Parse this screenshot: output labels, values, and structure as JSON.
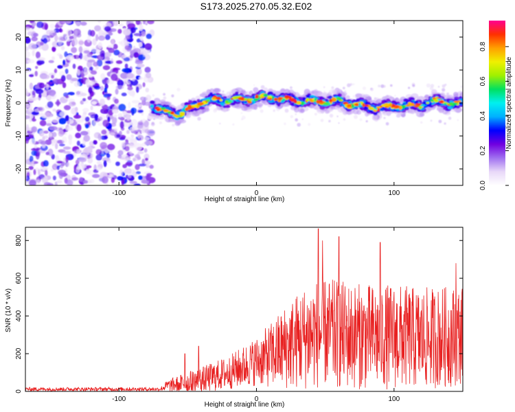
{
  "title": "S173.2025.270.05.32.E02",
  "chart_data": [
    {
      "type": "heatmap",
      "name": "spectrogram",
      "xlabel": "Height of straight line (km)",
      "ylabel": "Frequency (Hz)",
      "xlim": [
        -168,
        150
      ],
      "ylim": [
        -25,
        25
      ],
      "x_ticks": [
        -100,
        0,
        100
      ],
      "x_tick_labels": [
        "-100",
        "0",
        "100"
      ],
      "y_ticks": [
        20,
        10,
        0,
        -10,
        -20
      ],
      "y_tick_labels": [
        "20",
        "10",
        "0",
        "-10",
        "-20"
      ],
      "noise_region_x": [
        -168,
        -76
      ],
      "signal_ridge": {
        "x": [
          -76,
          -70,
          -60,
          -55,
          -50,
          -45,
          -40,
          -30,
          -20,
          -10,
          0,
          10,
          20,
          30,
          40,
          50,
          60,
          70,
          80,
          90,
          100,
          110,
          120,
          130,
          140,
          150
        ],
        "freq": [
          -0.5,
          -2.5,
          -3.0,
          -3.5,
          -2.0,
          -1.0,
          0.5,
          1.0,
          0.8,
          1.0,
          1.5,
          1.8,
          1.0,
          0.8,
          0.5,
          0.5,
          0.5,
          -0.5,
          -1.0,
          -1.5,
          -1.0,
          -0.8,
          -0.5,
          0.5,
          0.0,
          -0.5
        ]
      },
      "colorbar": {
        "label": "Normalized spectral amplitude",
        "range": [
          0,
          0.95
        ],
        "ticks": [
          0,
          0.2,
          0.4,
          0.6,
          0.8
        ],
        "tick_labels": [
          "0.0",
          "0.2",
          "0.4",
          "0.6",
          "0.8"
        ],
        "colormap": [
          "#ffffff",
          "#e8d8f8",
          "#a070f0",
          "#7000e0",
          "#0000ff",
          "#00b0ff",
          "#00f0f0",
          "#00e060",
          "#a0f000",
          "#f0f000",
          "#ffa000",
          "#ff3000",
          "#ff0090"
        ]
      }
    },
    {
      "type": "line",
      "name": "snr",
      "xlabel": "Height of straight line (km)",
      "ylabel": "SNR (10 * v/v)",
      "xlim": [
        -168,
        150
      ],
      "ylim": [
        0,
        870
      ],
      "x_ticks": [
        -100,
        0,
        100
      ],
      "x_tick_labels": [
        "-100",
        "0",
        "100"
      ],
      "y_ticks": [
        0,
        200,
        400,
        600,
        800
      ],
      "y_tick_labels": [
        "0",
        "200",
        "400",
        "600",
        "800"
      ],
      "color": "#e82020",
      "profile": {
        "x": [
          -168,
          -70,
          -65,
          -50,
          -40,
          -30,
          -20,
          -10,
          0,
          10,
          20,
          30,
          40,
          50,
          60,
          80,
          100,
          120,
          140,
          150
        ],
        "base": [
          12,
          12,
          30,
          45,
          60,
          80,
          100,
          130,
          160,
          190,
          230,
          270,
          300,
          310,
          300,
          290,
          290,
          280,
          290,
          300
        ],
        "spread": [
          10,
          10,
          30,
          60,
          70,
          80,
          90,
          110,
          130,
          170,
          220,
          260,
          290,
          290,
          290,
          280,
          280,
          270,
          270,
          260
        ]
      },
      "peaks": [
        {
          "x": 45,
          "y": 862
        },
        {
          "x": 48,
          "y": 800
        },
        {
          "x": 60,
          "y": 820
        },
        {
          "x": 90,
          "y": 790
        },
        {
          "x": 145,
          "y": 680
        },
        {
          "x": -42,
          "y": 240
        },
        {
          "x": -52,
          "y": 200
        }
      ]
    }
  ]
}
